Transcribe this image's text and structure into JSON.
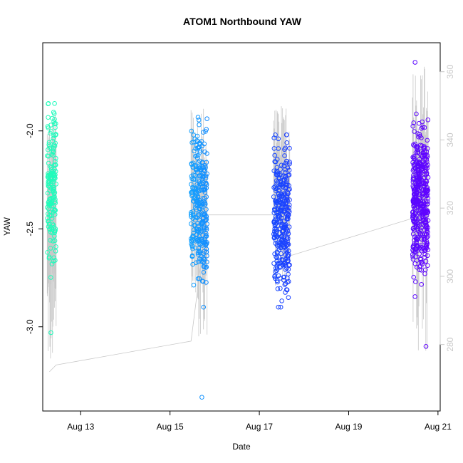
{
  "chart_data": {
    "type": "scatter",
    "title": "ATOM1 Northbound YAW",
    "xlabel": "Date",
    "ylabel": "YAW",
    "x_tick_labels": [
      "Aug 13",
      "Aug 15",
      "Aug 17",
      "Aug 19",
      "Aug 21"
    ],
    "x_tick_days": [
      13,
      15,
      17,
      19,
      21
    ],
    "xlim": [
      12.15,
      21.05
    ],
    "y_ticks": [
      -2.0,
      -2.5,
      -3.0
    ],
    "y_tick_labels": [
      "-2.0",
      "-2.5",
      "-3.0"
    ],
    "ylim": [
      -3.43,
      -1.55
    ],
    "y2_ticks": [
      280,
      300,
      320,
      340,
      360
    ],
    "y2_tick_labels": [
      "280",
      "300",
      "320",
      "340",
      "360"
    ],
    "y2lim": [
      260.5,
      368.5
    ],
    "grid": false,
    "legend": "none",
    "marker": "open-circle",
    "point_color_scale": [
      "#1fffb4",
      "#18e0ff",
      "#1060ff",
      "#2a1cff",
      "#6a00ff"
    ],
    "line_color": "#c8c8c8",
    "clusters": [
      {
        "date": "Aug 12",
        "day_start": 12.25,
        "day_end": 12.45,
        "yaw_min": -3.03,
        "yaw_max": -1.86,
        "yaw_center": -2.28,
        "n": 170,
        "spike_min": 272,
        "spike_max": 350
      },
      {
        "date": "Aug 15",
        "day_start": 15.47,
        "day_end": 15.83,
        "yaw_min": -3.36,
        "yaw_max": -1.93,
        "yaw_center": -2.38,
        "n": 300,
        "spike_min": 281,
        "spike_max": 350
      },
      {
        "date": "Aug 17",
        "day_start": 17.32,
        "day_end": 17.68,
        "yaw_min": -2.9,
        "yaw_max": -2.02,
        "yaw_center": -2.45,
        "n": 330,
        "spike_min": 295,
        "spike_max": 351
      },
      {
        "date": "Aug 20",
        "day_start": 20.43,
        "day_end": 20.78,
        "yaw_min": -3.1,
        "yaw_max": -1.65,
        "yaw_center": -2.35,
        "n": 420,
        "spike_min": 278,
        "spike_max": 363
      }
    ],
    "connecting_line": [
      {
        "day": 12.3,
        "y2": 272
      },
      {
        "day": 12.45,
        "y2": 274
      },
      {
        "day": 15.47,
        "y2": 281
      },
      {
        "day": 15.83,
        "y2": 318
      },
      {
        "day": 17.68,
        "y2": 318
      },
      {
        "day": 17.68,
        "y2": 306
      },
      {
        "day": 20.43,
        "y2": 317
      }
    ]
  }
}
